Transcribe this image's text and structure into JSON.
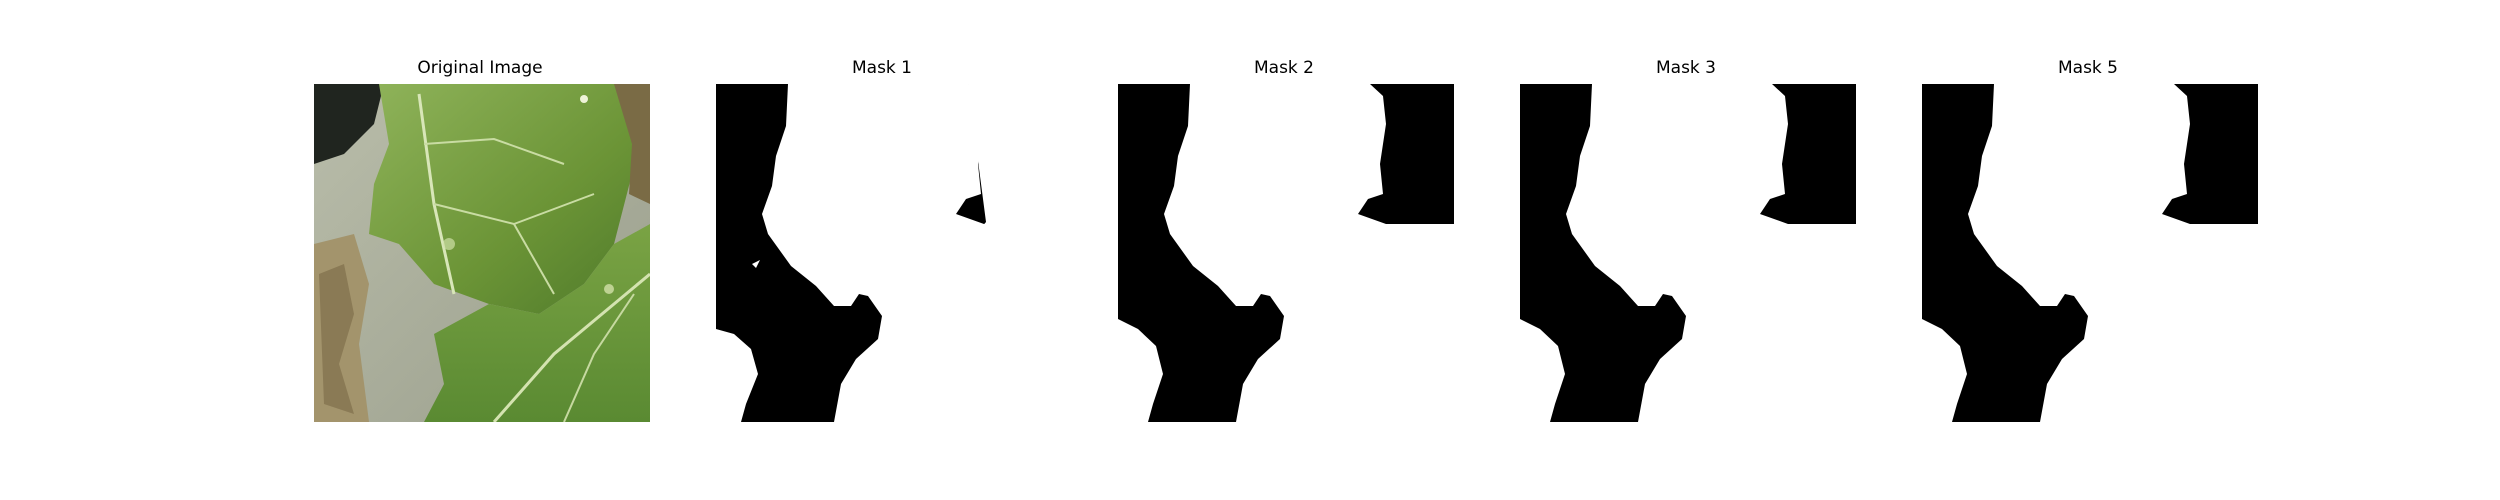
{
  "figure": {
    "panels": [
      {
        "title": "Original Image",
        "content": "leaf-photo"
      },
      {
        "title": "Mask 1",
        "content": "binary-mask"
      },
      {
        "title": "Mask 2",
        "content": "binary-mask"
      },
      {
        "title": "Mask 3",
        "content": "binary-mask"
      },
      {
        "title": "Mask 5",
        "content": "binary-mask"
      }
    ]
  },
  "colors": {
    "mask_foreground": "#ffffff",
    "mask_background": "#000000",
    "leaf_green": "#6f9a3f",
    "background_gray": "#a7ab99"
  }
}
